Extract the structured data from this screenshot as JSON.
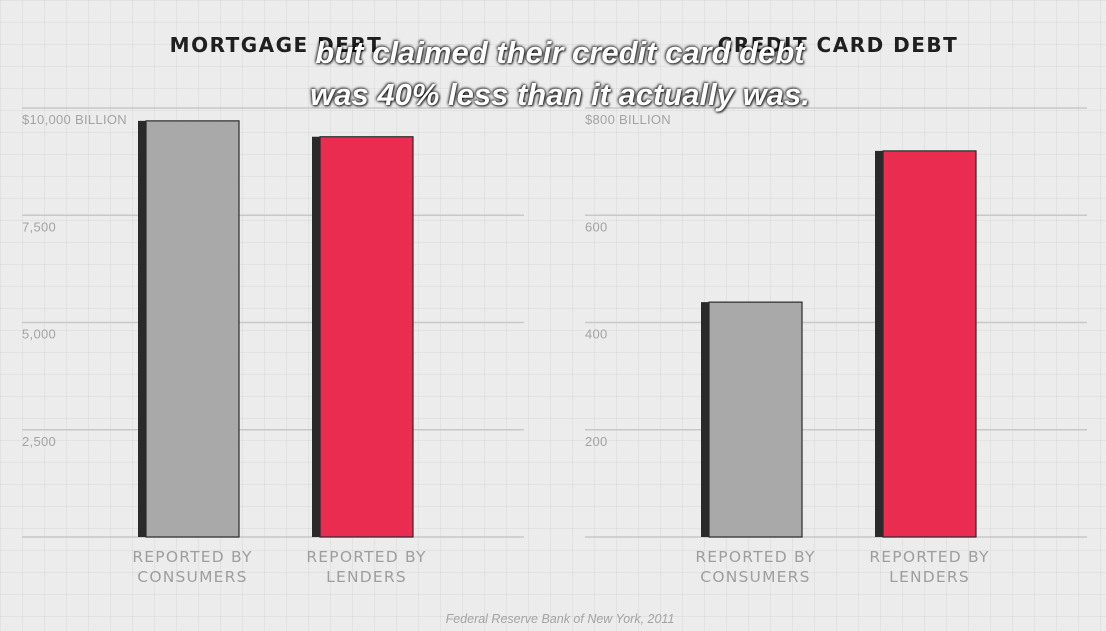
{
  "colors": {
    "consumers": "#a9a9a9",
    "lenders": "#ea2c51",
    "shadow": "#2a2a2a",
    "gridline": "#c8c8c8"
  },
  "caption": {
    "line1": "but claimed their credit card debt",
    "line2": "was 40% less than it actually was."
  },
  "source": "Federal Reserve Bank of New York, 2011",
  "chart_data": [
    {
      "type": "bar",
      "title": "MORTGAGE DEBT",
      "categories": [
        [
          "REPORTED BY",
          "CONSUMERS"
        ],
        [
          "REPORTED BY",
          "LENDERS"
        ]
      ],
      "values": [
        9700,
        9330
      ],
      "ylim": [
        0,
        10000
      ],
      "yticks": [
        {
          "value": 10000,
          "label": "$10,000 BILLION"
        },
        {
          "value": 7500,
          "label": "7,500"
        },
        {
          "value": 5000,
          "label": "5,000"
        },
        {
          "value": 2500,
          "label": "2,500"
        }
      ],
      "grid": true
    },
    {
      "type": "bar",
      "title": "CREDIT CARD DEBT",
      "categories": [
        [
          "REPORTED BY",
          "CONSUMERS"
        ],
        [
          "REPORTED BY",
          "LENDERS"
        ]
      ],
      "values": [
        438,
        720
      ],
      "ylim": [
        0,
        800
      ],
      "yticks": [
        {
          "value": 800,
          "label": "$800 BILLION"
        },
        {
          "value": 600,
          "label": "600"
        },
        {
          "value": 400,
          "label": "400"
        },
        {
          "value": 200,
          "label": "200"
        }
      ],
      "grid": true
    }
  ]
}
